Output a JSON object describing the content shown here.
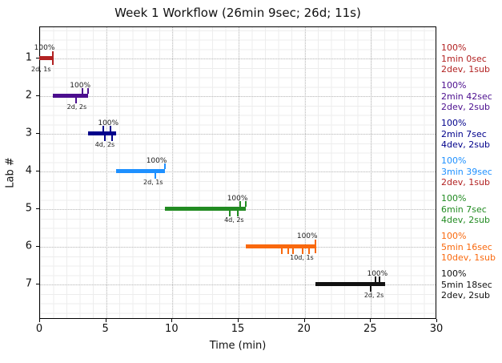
{
  "window": {
    "background": "#ffffff"
  },
  "chart_data": {
    "type": "bar",
    "subtype": "horizontal-gantt-timeline",
    "title": "Week 1 Workflow (26min 9sec; 26d; 11s)",
    "xlabel": "Time (min)",
    "ylabel": "Lab #",
    "xlim": [
      0,
      30
    ],
    "x_ticks": [
      0,
      5,
      10,
      15,
      20,
      25,
      30
    ],
    "y_categories": [
      "1",
      "2",
      "3",
      "4",
      "5",
      "6",
      "7"
    ],
    "grid": "major dotted gridlines (vertical at 5-min steps, horizontal at each lab row) over a fine light minor mesh",
    "legend_position": "none",
    "totals": {
      "duration": "26min 9sec",
      "devs": "26d",
      "subs": "11s"
    },
    "annotation_text_color": "#1a1a1a",
    "grid_major_color": "#c3c3c3",
    "grid_minor_color": "#ededed",
    "labs": [
      {
        "lab": "1",
        "color": "#B22222",
        "start_min": 0.0,
        "end_min": 1.0,
        "pct_label": "100%",
        "devsub_label": "2d, 1s",
        "right_lines": [
          {
            "text": "100%",
            "color": "#B22222"
          },
          {
            "text": "1min 0sec",
            "color": "#B22222"
          },
          {
            "text": "2dev, 1sub",
            "color": "#B22222"
          }
        ],
        "ticks_up": [],
        "ticks_down": [],
        "end_cross": true
      },
      {
        "lab": "2",
        "color": "#4B0E8E",
        "start_min": 1.0,
        "end_min": 3.7,
        "pct_label": "100%",
        "devsub_label": "2d, 2s",
        "right_lines": [
          {
            "text": "100%",
            "color": "#4B0E8E"
          },
          {
            "text": "2min 42sec",
            "color": "#4B0E8E"
          },
          {
            "text": "2dev, 2sub",
            "color": "#4B0E8E"
          }
        ],
        "ticks_up": [
          3.2,
          3.6
        ],
        "ticks_down": [
          2.75
        ],
        "end_cross": false
      },
      {
        "lab": "3",
        "color": "#00008B",
        "start_min": 3.7,
        "end_min": 5.82,
        "pct_label": "100%",
        "devsub_label": "4d, 2s",
        "right_lines": [
          {
            "text": "100%",
            "color": "#00008B"
          },
          {
            "text": "2min 7sec",
            "color": "#00008B"
          },
          {
            "text": "4dev, 2sub",
            "color": "#00008B"
          }
        ],
        "ticks_up": [
          4.8,
          5.3
        ],
        "ticks_down": [
          4.88,
          5.42
        ],
        "end_cross": false
      },
      {
        "lab": "4",
        "color": "#1E90FF",
        "start_min": 5.82,
        "end_min": 9.47,
        "pct_label": "100%",
        "devsub_label": "2d, 1s",
        "right_lines": [
          {
            "text": "100%",
            "color": "#1E90FF"
          },
          {
            "text": "3min 39sec",
            "color": "#1E90FF"
          },
          {
            "text": "2dev, 1sub",
            "color": "#B22222"
          }
        ],
        "ticks_up": [
          9.45
        ],
        "ticks_down": [
          8.72
        ],
        "end_cross": false
      },
      {
        "lab": "5",
        "color": "#228B22",
        "start_min": 9.47,
        "end_min": 15.58,
        "pct_label": "100%",
        "devsub_label": "4d, 2s",
        "right_lines": [
          {
            "text": "100%",
            "color": "#228B22"
          },
          {
            "text": "6min 7sec",
            "color": "#228B22"
          },
          {
            "text": "4dev, 2sub",
            "color": "#228B22"
          }
        ],
        "ticks_up": [
          15.13,
          15.55
        ],
        "ticks_down": [
          14.33,
          14.93
        ],
        "end_cross": false
      },
      {
        "lab": "6",
        "color": "#F9690E",
        "start_min": 15.58,
        "end_min": 20.85,
        "pct_label": "100%",
        "devsub_label": "10d, 1s",
        "right_lines": [
          {
            "text": "100%",
            "color": "#F9690E"
          },
          {
            "text": "5min 16sec",
            "color": "#F9690E"
          },
          {
            "text": "10dev, 1sub",
            "color": "#F9690E"
          }
        ],
        "ticks_up": [],
        "ticks_down": [
          18.27,
          18.78,
          19.12,
          19.85,
          20.33
        ],
        "end_cross": true
      },
      {
        "lab": "7",
        "color": "#111111",
        "start_min": 20.85,
        "end_min": 26.15,
        "pct_label": "100%",
        "devsub_label": "2d, 2s",
        "right_lines": [
          {
            "text": "100%",
            "color": "#111111"
          },
          {
            "text": "5min 18sec",
            "color": "#111111"
          },
          {
            "text": "2dev, 2sub",
            "color": "#111111"
          }
        ],
        "ticks_up": [
          25.35,
          25.65
        ],
        "ticks_down": [
          25.0
        ],
        "end_cross": false
      }
    ]
  }
}
